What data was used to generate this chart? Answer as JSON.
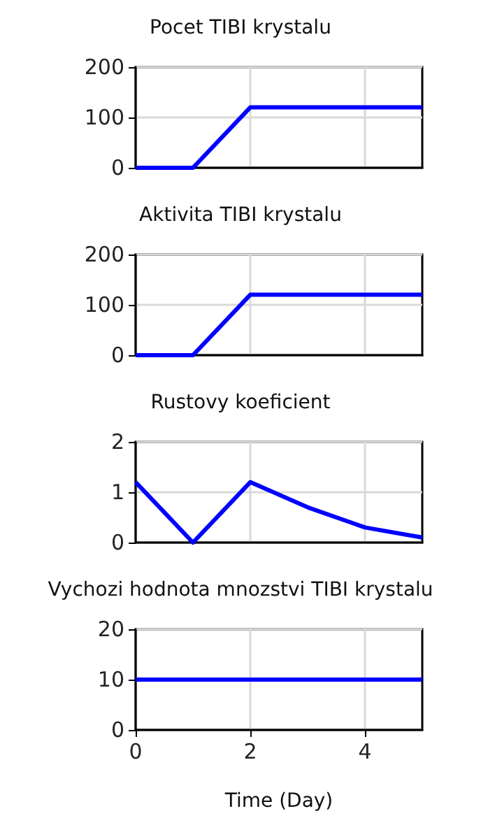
{
  "chart_data": [
    {
      "type": "line",
      "title": "Pocet TIBI krystalu",
      "x": [
        0,
        1,
        2,
        5
      ],
      "series": [
        {
          "color": "#0000ff",
          "values": [
            0,
            0,
            120,
            120
          ]
        }
      ],
      "xlim": [
        0,
        5
      ],
      "xticks": [
        0,
        2,
        4
      ],
      "ylim": [
        0,
        200
      ],
      "yticks": [
        0,
        100,
        200
      ],
      "grid": true,
      "tick_labels": "y",
      "marker": "none"
    },
    {
      "type": "line",
      "title": "Aktivita TIBI krystalu",
      "x": [
        0,
        1,
        2,
        5
      ],
      "series": [
        {
          "color": "#0000ff",
          "values": [
            0,
            0,
            120,
            120
          ]
        }
      ],
      "xlim": [
        0,
        5
      ],
      "xticks": [
        0,
        2,
        4
      ],
      "ylim": [
        0,
        200
      ],
      "yticks": [
        0,
        100,
        200
      ],
      "grid": true,
      "tick_labels": "y",
      "marker": "none"
    },
    {
      "type": "line",
      "title": "Rustovy koeficient",
      "x": [
        0,
        1,
        2,
        3,
        4,
        5
      ],
      "series": [
        {
          "color": "#0000ff",
          "values": [
            1.2,
            0,
            1.2,
            0.7,
            0.3,
            0.1
          ]
        }
      ],
      "xlim": [
        0,
        5
      ],
      "xticks": [
        0,
        2,
        4
      ],
      "ylim": [
        0,
        2
      ],
      "yticks": [
        0,
        1,
        2
      ],
      "grid": true,
      "tick_labels": "y",
      "marker": "none"
    },
    {
      "type": "line",
      "title": "Vychozi hodnota mnozstvi TIBI krystalu",
      "xlabel": "Time (Day)",
      "x": [
        0,
        5
      ],
      "series": [
        {
          "color": "#0000ff",
          "values": [
            10,
            10
          ]
        }
      ],
      "xlim": [
        0,
        5
      ],
      "xticks": [
        0,
        2,
        4
      ],
      "ylim": [
        0,
        20
      ],
      "yticks": [
        0,
        10,
        20
      ],
      "grid": true,
      "marker": "none"
    }
  ]
}
